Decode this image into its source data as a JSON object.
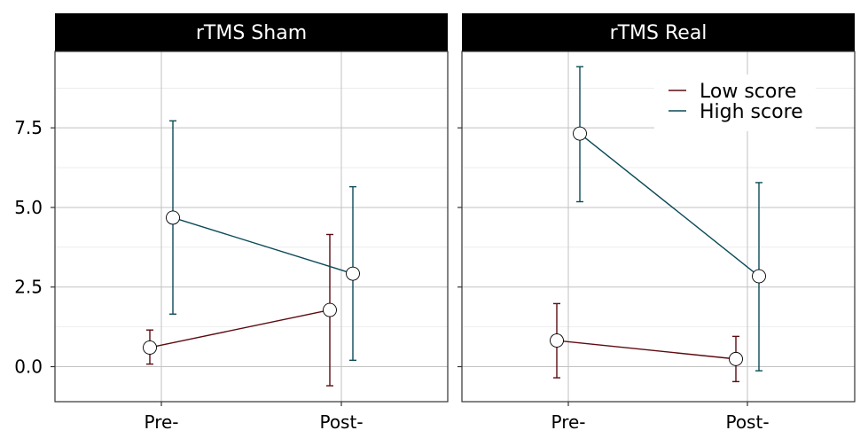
{
  "chart_data": {
    "type": "line",
    "facets": [
      {
        "title": "rTMS Sham",
        "series": [
          {
            "name": "Low score",
            "values": [
              0.6,
              1.78
            ],
            "lower": [
              0.08,
              -0.6
            ],
            "upper": [
              1.15,
              4.15
            ]
          },
          {
            "name": "High score",
            "values": [
              4.68,
              2.92
            ],
            "lower": [
              1.65,
              0.2
            ],
            "upper": [
              7.72,
              5.65
            ]
          }
        ]
      },
      {
        "title": "rTMS Real",
        "series": [
          {
            "name": "Low score",
            "values": [
              0.82,
              0.24
            ],
            "lower": [
              -0.35,
              -0.47
            ],
            "upper": [
              1.98,
              0.95
            ]
          },
          {
            "name": "High score",
            "values": [
              7.32,
              2.84
            ],
            "lower": [
              5.18,
              -0.13
            ],
            "upper": [
              9.42,
              5.78
            ]
          }
        ]
      }
    ],
    "categories": [
      "Pre-",
      "Post-"
    ],
    "y_ticks": [
      "0.0",
      "2.5",
      "5.0",
      "7.5"
    ],
    "y_tick_values": [
      0,
      2.5,
      5.0,
      7.5
    ],
    "ylim": [
      -1.1,
      9.9
    ],
    "grid": true,
    "legend": {
      "placement": "top-right",
      "panel": "rTMS Real",
      "entries": [
        "Low score",
        "High score"
      ]
    },
    "colors": {
      "Low score": "#5c0b10",
      "High score": "#0b4a57"
    },
    "marker": "open-circle"
  }
}
